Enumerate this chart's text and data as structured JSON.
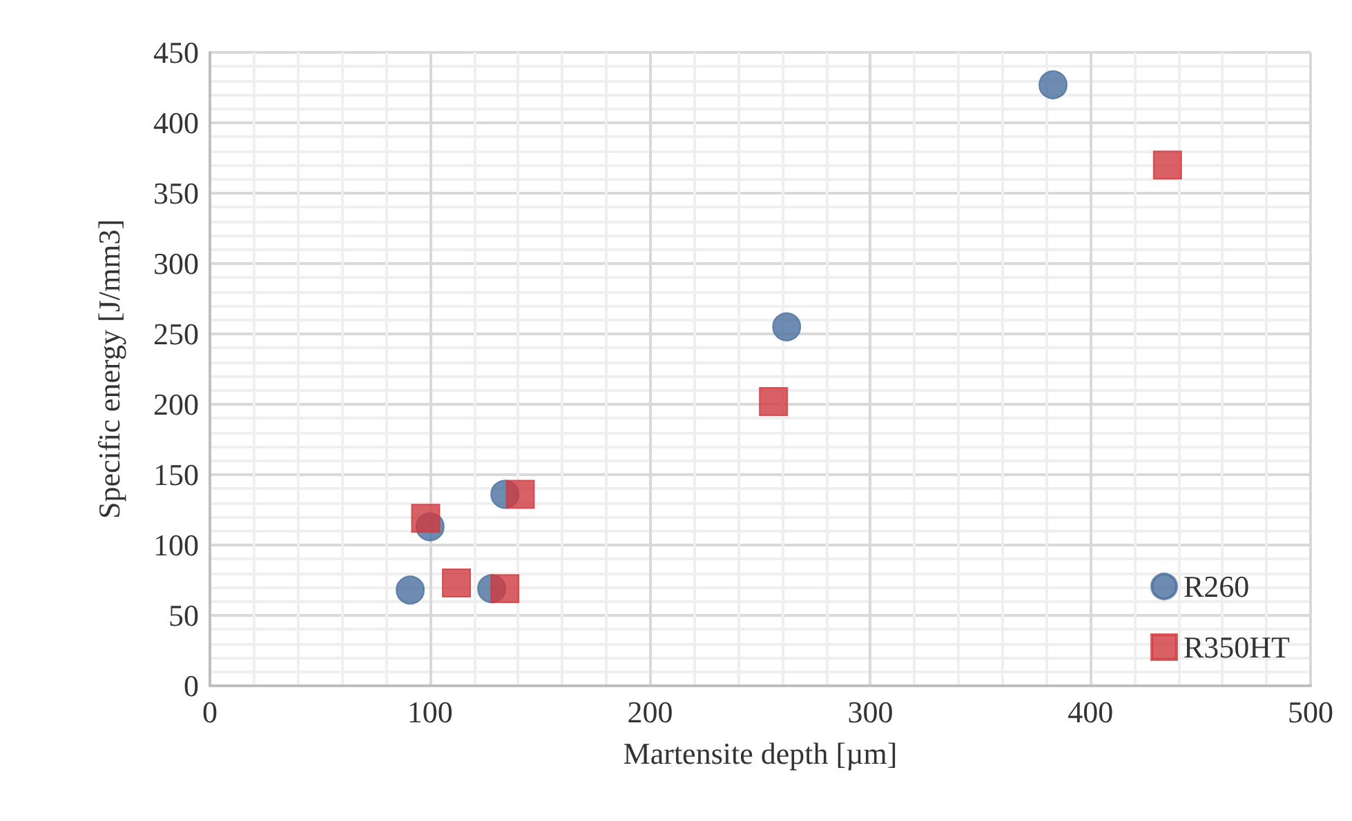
{
  "chart_data": {
    "type": "scatter",
    "xlabel": "Martensite depth [µm]",
    "ylabel": "Specific energy [J/mm3]",
    "xlim": [
      0,
      500
    ],
    "xticks": [
      0,
      100,
      200,
      300,
      400,
      500
    ],
    "ylim": [
      0,
      450
    ],
    "yticks": [
      0,
      50,
      100,
      150,
      200,
      250,
      300,
      350,
      400,
      450
    ],
    "grid": true,
    "legend": "bottom right",
    "series": [
      {
        "name": "R260",
        "color": "#4a6f9e",
        "marker": "circle",
        "x": [
          91,
          100,
          134,
          128,
          262,
          383
        ],
        "values": [
          68,
          113,
          136,
          69,
          255,
          427
        ]
      },
      {
        "name": "R350HT",
        "color": "#d0393e",
        "marker": "square",
        "x": [
          98,
          112,
          134,
          141,
          256,
          435
        ],
        "values": [
          119,
          73,
          69,
          136,
          202,
          370
        ]
      }
    ]
  }
}
